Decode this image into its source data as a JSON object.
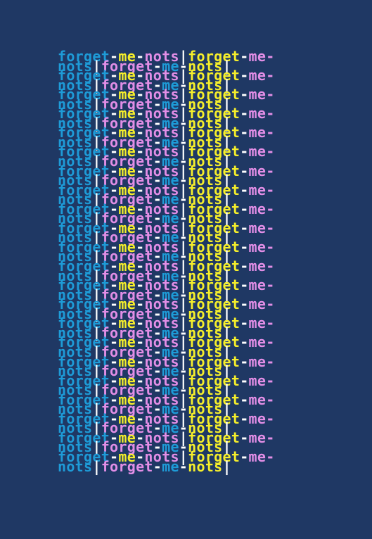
{
  "colors": {
    "background": "#1f3864",
    "blue": "#1e9bd7",
    "pink": "#e28ee6",
    "yellow": "#f5ee2b",
    "white": "#ffffff"
  },
  "pattern": {
    "line_a": [
      {
        "text": "forget",
        "color": "blue"
      },
      {
        "text": "-",
        "color": "white"
      },
      {
        "text": "me",
        "color": "yellow"
      },
      {
        "text": "-",
        "color": "white"
      },
      {
        "text": "nots",
        "color": "pink"
      },
      {
        "text": "|",
        "color": "white"
      },
      {
        "text": "forget",
        "color": "yellow"
      },
      {
        "text": "-",
        "color": "white"
      },
      {
        "text": "me-",
        "color": "pink"
      }
    ],
    "line_b": [
      {
        "text": "nots",
        "color": "blue"
      },
      {
        "text": "|",
        "color": "white"
      },
      {
        "text": "forget",
        "color": "pink"
      },
      {
        "text": "-",
        "color": "white"
      },
      {
        "text": "me",
        "color": "blue"
      },
      {
        "text": "-",
        "color": "white"
      },
      {
        "text": "nots",
        "color": "yellow"
      },
      {
        "text": "|",
        "color": "white"
      }
    ],
    "stanza_count": 22
  }
}
